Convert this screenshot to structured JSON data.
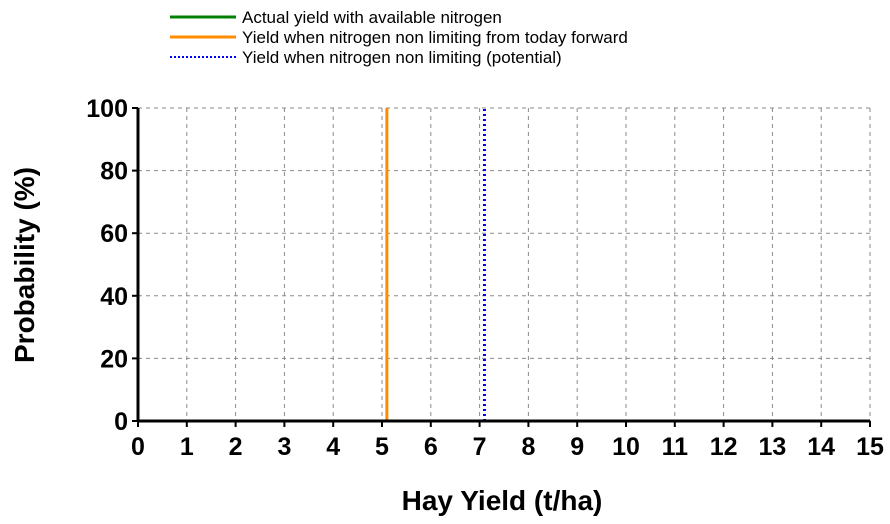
{
  "chart_data": {
    "type": "line",
    "xlabel": "Hay Yield (t/ha)",
    "ylabel": "Probability (%)",
    "xlim": [
      0,
      15
    ],
    "ylim": [
      0,
      100
    ],
    "x_ticks": [
      "0",
      "1",
      "2",
      "3",
      "4",
      "5",
      "6",
      "7",
      "8",
      "9",
      "10",
      "11",
      "12",
      "13",
      "14",
      "15"
    ],
    "y_ticks": [
      "0",
      "20",
      "40",
      "60",
      "80",
      "100"
    ],
    "grid": true,
    "legend_placement": "top",
    "series": [
      {
        "name": "Actual yield with available nitrogen",
        "color": "#008000",
        "style": "solid",
        "x": [],
        "y": []
      },
      {
        "name": "Yield when nitrogen non limiting from today forward",
        "color": "#ff8c00",
        "style": "solid",
        "x": [
          5.1,
          5.1
        ],
        "y": [
          0,
          100
        ]
      },
      {
        "name": "Yield when nitrogen non limiting (potential)",
        "color": "#0000ff",
        "style": "dotted",
        "x": [
          7.1,
          7.1
        ],
        "y": [
          0,
          100
        ]
      }
    ]
  }
}
